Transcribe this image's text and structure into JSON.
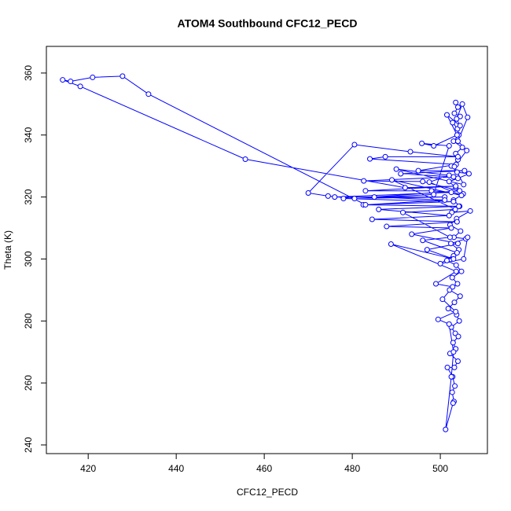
{
  "chart_data": {
    "type": "scatter",
    "lines": true,
    "title": "ATOM4 Southbound CFC12_PECD",
    "x_label": "CFC12_PECD",
    "y_label": "Theta (K)",
    "color": "#0000ff",
    "x": [
      503.5,
      504,
      503.2,
      504.5,
      502.8,
      503.9,
      504.2,
      503,
      505,
      503.5,
      504,
      502.5,
      503.8,
      506.5,
      504,
      502,
      503.5,
      505.2,
      503,
      504.4,
      502.6,
      506.8,
      503.7,
      502.2,
      504.6,
      503.1,
      505.8,
      502.4,
      504.2,
      503,
      501.5,
      503.6,
      504.8,
      502.7,
      503.9,
      502.1,
      504.5,
      503.2,
      501.8,
      503.7,
      504.3,
      502.5,
      503.4,
      504.1,
      502.9,
      503.5,
      502.2,
      504,
      503.2,
      501.6,
      502.8,
      503.3,
      502.7,
      503.1,
      502.9,
      501.2,
      502.5,
      503,
      502,
      499.5,
      503.5,
      500.5,
      502.8,
      499,
      503.6,
      488.8,
      503,
      497,
      504,
      493.5,
      502.5,
      487.8,
      503.8,
      484.5,
      502,
      486,
      504.2,
      482.5,
      503,
      478,
      501,
      476,
      502.5,
      498,
      483,
      503.5,
      492,
      455.7,
      418.2,
      414.2,
      416,
      421,
      427.8,
      433.7,
      483,
      501,
      485,
      504.4,
      496,
      482.6,
      503,
      491,
      505.5,
      495,
      503.6,
      484,
      487.5,
      504,
      493.2,
      480.5,
      470,
      474.5,
      480.5,
      498.5,
      502,
      495.8,
      498.5,
      503.8,
      501.5,
      504.5,
      503.7,
      505,
      506.2,
      504,
      506,
      503.2,
      505.3,
      490,
      502,
      497.5,
      504.8,
      489,
      503.4,
      491.5,
      502.2,
      496,
      503.8,
      500,
      505.3,
      506.2
    ],
    "values": [
      350.5,
      349,
      347,
      346,
      344,
      342,
      340,
      338,
      336,
      334,
      332,
      330,
      328,
      327.5,
      326,
      325,
      323,
      321,
      319,
      317,
      315,
      315.5,
      313,
      311,
      309,
      307,
      306.5,
      305,
      303,
      301,
      299.5,
      298,
      296,
      294,
      292,
      290,
      288,
      286,
      284,
      282,
      280,
      278,
      276,
      275,
      273,
      271,
      269.5,
      267,
      265,
      265,
      262,
      259,
      257,
      254,
      253.5,
      245,
      262,
      270,
      279,
      280.5,
      283,
      287,
      291,
      292,
      296,
      304.8,
      300,
      303,
      305,
      308,
      310,
      310.5,
      312,
      312.8,
      314,
      316,
      317,
      317.5,
      318.5,
      319.5,
      320,
      320,
      321.5,
      322,
      322,
      323.5,
      323,
      332.2,
      355.7,
      357.8,
      357.3,
      358.6,
      359,
      353.2,
      317.5,
      319,
      320,
      322,
      325,
      325.2,
      326.5,
      327.5,
      328.5,
      328.5,
      330.5,
      332.3,
      333,
      333,
      334.6,
      336.9,
      321.3,
      320.3,
      319.5,
      320.8,
      336.5,
      337.3,
      336.5,
      340,
      346.5,
      343,
      345.2,
      350,
      345.7,
      338,
      335,
      329.8,
      324,
      329,
      327,
      324.8,
      320.5,
      325.5,
      316,
      315,
      307,
      306,
      302,
      298.5,
      300,
      307
    ],
    "xlim": [
      410.5,
      510.7
    ],
    "ylim": [
      237.2,
      368.6
    ],
    "xticks": [
      420,
      440,
      460,
      480,
      500
    ],
    "yticks": [
      240,
      260,
      280,
      300,
      320,
      340,
      360
    ]
  }
}
